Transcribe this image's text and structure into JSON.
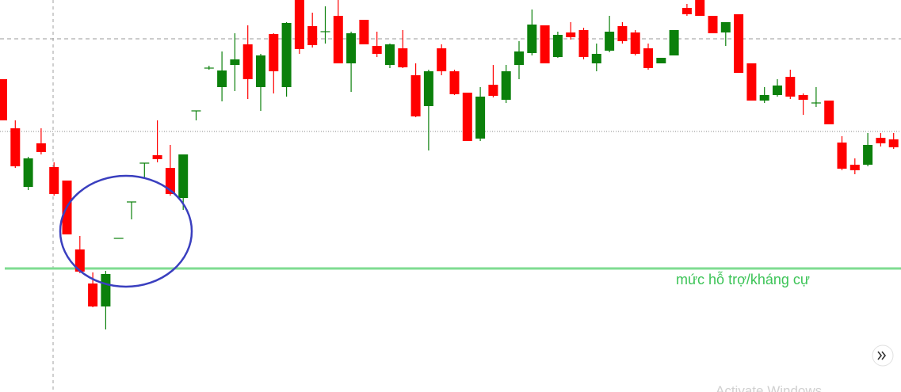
{
  "chart_data": {
    "type": "candlestick",
    "ylim": [
      0,
      495
    ],
    "up_color": "#0b800b",
    "down_color": "#ff0000",
    "open": [
      395,
      333,
      259,
      314,
      284,
      267,
      180,
      137,
      108,
      194,
      240,
      289,
      299,
      283,
      245,
      355,
      409,
      385,
      413,
      439,
      385,
      452,
      385,
      495,
      462,
      455,
      475,
      415,
      470,
      437,
      413,
      434,
      400,
      361,
      434,
      405,
      378,
      320,
      388,
      369,
      413,
      428,
      463,
      423,
      454,
      457,
      415,
      431,
      462,
      454,
      434,
      415,
      425,
      485,
      495,
      475,
      454,
      477,
      415,
      368,
      375,
      398,
      375,
      365,
      368,
      315,
      287,
      287,
      321,
      319
    ],
    "high": [
      395,
      343,
      297,
      333,
      290,
      267,
      197,
      151,
      153,
      194,
      240,
      289,
      343,
      312,
      300,
      355,
      412,
      430,
      453,
      463,
      427,
      453,
      467,
      495,
      479,
      487,
      495,
      455,
      470,
      455,
      440,
      457,
      415,
      407,
      439,
      407,
      378,
      385,
      413,
      413,
      443,
      483,
      463,
      455,
      467,
      460,
      440,
      475,
      467,
      457,
      440,
      422,
      457,
      490,
      495,
      475,
      467,
      477,
      415,
      385,
      395,
      407,
      377,
      385,
      368,
      323,
      295,
      327,
      327,
      327
    ],
    "low": [
      343,
      283,
      255,
      300,
      248,
      199,
      150,
      107,
      79,
      194,
      218,
      270,
      290,
      248,
      230,
      343,
      407,
      367,
      380,
      370,
      355,
      377,
      373,
      427,
      435,
      440,
      415,
      379,
      439,
      423,
      409,
      409,
      347,
      305,
      400,
      375,
      317,
      317,
      372,
      365,
      395,
      425,
      415,
      422,
      445,
      420,
      405,
      429,
      440,
      425,
      407,
      415,
      425,
      475,
      475,
      453,
      437,
      403,
      368,
      365,
      373,
      370,
      350,
      360,
      338,
      280,
      275,
      285,
      310,
      307
    ],
    "close": [
      343,
      285,
      295,
      303,
      250,
      199,
      152,
      108,
      149,
      194,
      240,
      289,
      294,
      250,
      300,
      355,
      409,
      406,
      420,
      395,
      425,
      405,
      466,
      433,
      438,
      455,
      415,
      453,
      439,
      427,
      439,
      410,
      348,
      405,
      405,
      376,
      317,
      373,
      374,
      405,
      430,
      464,
      415,
      451,
      448,
      423,
      427,
      455,
      443,
      427,
      409,
      422,
      457,
      477,
      475,
      453,
      467,
      403,
      368,
      375,
      387,
      373,
      369,
      365,
      338,
      282,
      280,
      312,
      314,
      309
    ],
    "levels": [
      {
        "value": 446,
        "style": "dashed",
        "color": "#9a9a9a"
      },
      {
        "value": 329,
        "style": "dotted",
        "color": "#8a8a8a"
      },
      {
        "value": 156,
        "style": "solid",
        "color": "#7fdc92",
        "label": "mức hỗ trợ/kháng cự",
        "label_color": "#3cc457"
      }
    ],
    "watermark": "Activate Windows"
  }
}
